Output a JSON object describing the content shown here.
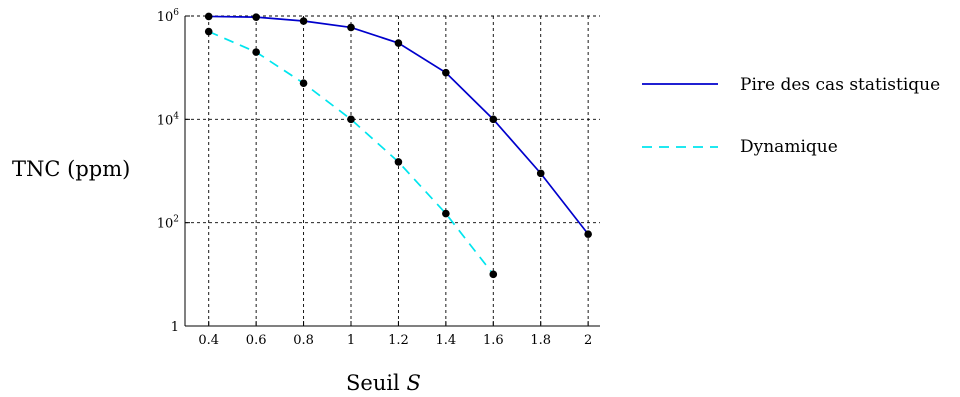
{
  "chart_data": {
    "type": "line",
    "xlabel": "Seuil",
    "xlabel_var": "S",
    "ylabel": "TNC (ppm)",
    "x_ticks": [
      "0.4",
      "0.6",
      "0.8",
      "1",
      "1.2",
      "1.4",
      "1.6",
      "1.8",
      "2"
    ],
    "y_ticks": [
      {
        "value": 1,
        "base": "1",
        "exp": ""
      },
      {
        "value": 100,
        "base": "10",
        "exp": "2"
      },
      {
        "value": 10000,
        "base": "10",
        "exp": "4"
      },
      {
        "value": 1000000,
        "base": "10",
        "exp": "6"
      }
    ],
    "xlim": [
      0.3,
      2.05
    ],
    "ylim": [
      1,
      1000000
    ],
    "y_scale": "log",
    "grid": true,
    "legend_position": "right",
    "series": [
      {
        "name": "Pire des cas statistique",
        "color": "#0000cc",
        "style": "solid",
        "x": [
          0.4,
          0.6,
          0.8,
          1.0,
          1.2,
          1.4,
          1.6,
          1.8,
          2.0
        ],
        "y": [
          980000,
          950000,
          800000,
          600000,
          300000,
          80000,
          10000,
          900,
          60
        ]
      },
      {
        "name": "Dynamique",
        "color": "#00e5ee",
        "style": "dashed",
        "x": [
          0.4,
          0.6,
          0.8,
          1.0,
          1.2,
          1.4,
          1.6
        ],
        "y": [
          500000,
          200000,
          50000,
          10000,
          1500,
          150,
          10
        ]
      }
    ]
  }
}
